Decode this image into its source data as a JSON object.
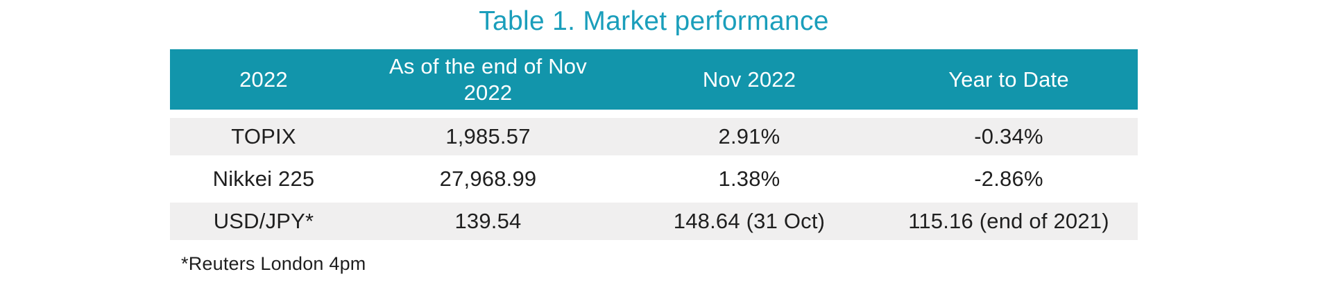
{
  "title": "Table 1. Market performance",
  "table": {
    "columns": [
      "2022",
      "As of the end of Nov 2022",
      "Nov 2022",
      "Year to Date"
    ],
    "rows": [
      [
        "TOPIX",
        "1,985.57",
        "2.91%",
        "-0.34%"
      ],
      [
        "Nikkei 225",
        "27,968.99",
        "1.38%",
        "-2.86%"
      ],
      [
        "USD/JPY*",
        "139.54",
        "148.64 (31 Oct)",
        "115.16 (end of 2021)"
      ]
    ]
  },
  "footnote": "*Reuters London 4pm",
  "colors": {
    "title-teal": "#1A9EBB",
    "header-teal": "#1295AB",
    "row-gray": "#F0EFEF",
    "text-dark": "#1F1F1F"
  }
}
